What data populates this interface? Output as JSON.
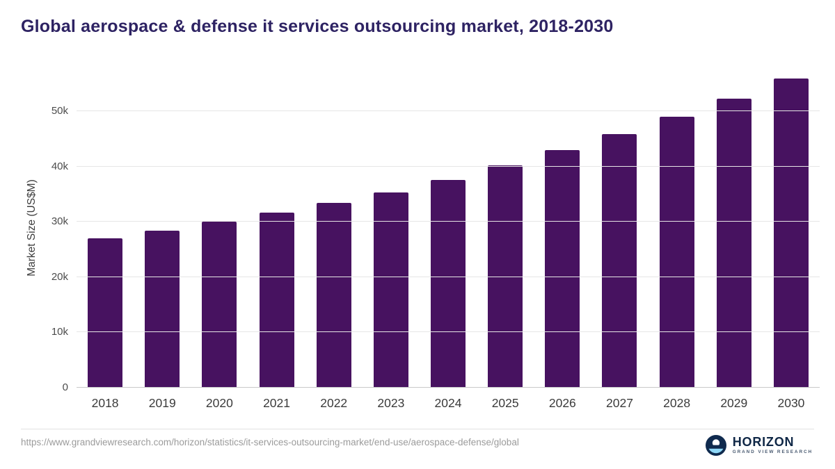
{
  "header": {
    "title": "Global aerospace & defense it services outsourcing market, 2018-2030"
  },
  "colors": {
    "bar": "#471260",
    "title": "#2e2363",
    "logo_navy": "#0f2a4e",
    "logo_light_blue": "#8fd8f8"
  },
  "chart_data": {
    "type": "bar",
    "title": "Global aerospace & defense it services outsourcing market, 2018-2030",
    "categories": [
      "2018",
      "2019",
      "2020",
      "2021",
      "2022",
      "2023",
      "2024",
      "2025",
      "2026",
      "2027",
      "2028",
      "2029",
      "2030"
    ],
    "values": [
      27000,
      28400,
      30000,
      31700,
      33400,
      35300,
      37600,
      40200,
      43000,
      45900,
      49000,
      52300,
      55900
    ],
    "xlabel": "",
    "ylabel": "Market Size (US$M)",
    "ylim": [
      0,
      57800
    ],
    "yticks": [
      {
        "value": 0,
        "label": "0"
      },
      {
        "value": 10000,
        "label": "10k"
      },
      {
        "value": 20000,
        "label": "20k"
      },
      {
        "value": 30000,
        "label": "30k"
      },
      {
        "value": 40000,
        "label": "40k"
      },
      {
        "value": 50000,
        "label": "50k"
      }
    ],
    "grid": "horizontal",
    "legend": "none",
    "bar_color": "#471260"
  },
  "footer": {
    "source_url": "https://www.grandviewresearch.com/horizon/statistics/it-services-outsourcing-market/end-use/aerospace-defense/global",
    "logo": {
      "name": "HORIZON",
      "subtext": "GRAND VIEW RESEARCH"
    }
  }
}
